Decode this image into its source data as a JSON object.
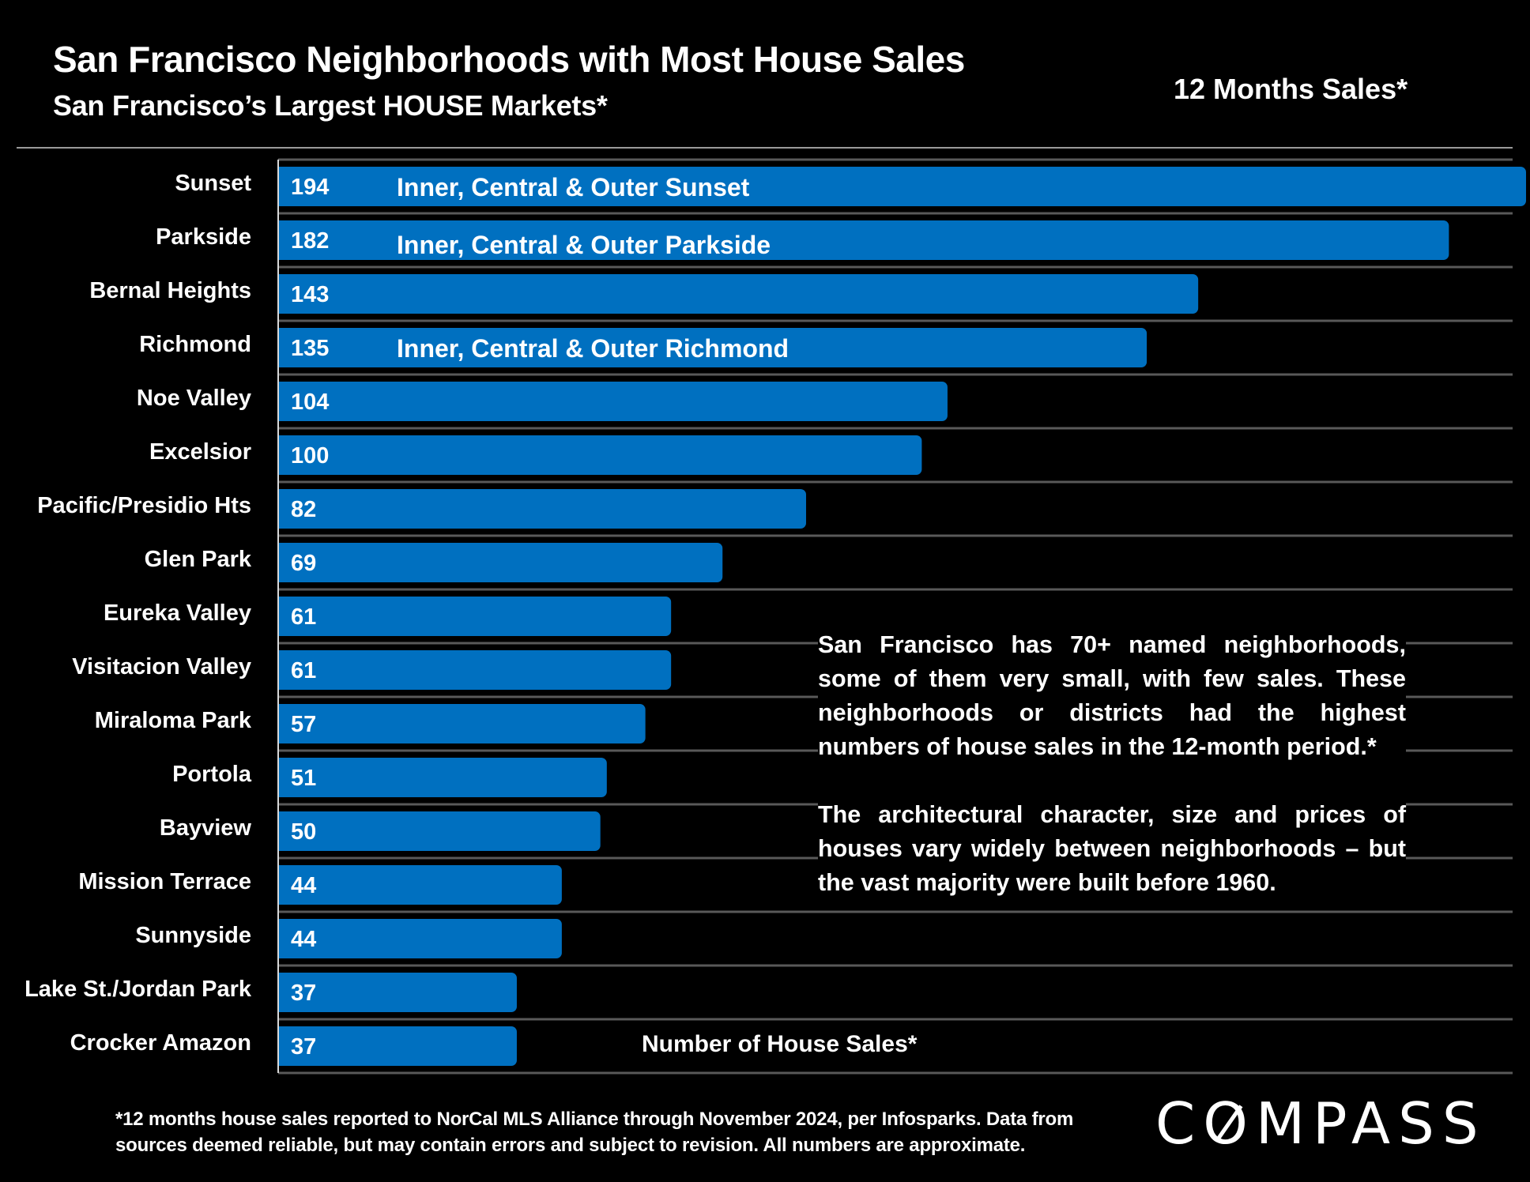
{
  "header": {
    "title": "San Francisco Neighborhoods with Most House Sales",
    "subtitle": "San Francisco’s Largest HOUSE Markets*",
    "period_label": "12 Months Sales*"
  },
  "chart_data": {
    "type": "bar",
    "orientation": "horizontal",
    "title": "San Francisco Neighborhoods with Most House Sales",
    "subtitle": "San Francisco’s Largest HOUSE Markets*",
    "xlabel": "Number of House Sales*",
    "ylabel": "",
    "xlim": [
      0,
      194
    ],
    "grid": true,
    "legend": "none",
    "bar_color": "#0070C0",
    "categories": [
      "Sunset",
      "Parkside",
      "Bernal Heights",
      "Richmond",
      "Noe Valley",
      "Excelsior",
      "Pacific/Presidio Hts",
      "Glen Park",
      "Eureka Valley",
      "Visitacion Valley",
      "Miraloma Park",
      "Portola",
      "Bayview",
      "Mission Terrace",
      "Sunnyside",
      "Lake St./Jordan Park",
      "Crocker Amazon"
    ],
    "values": [
      194,
      182,
      143,
      135,
      104,
      100,
      82,
      69,
      61,
      61,
      57,
      51,
      50,
      44,
      44,
      37,
      37
    ],
    "annotations": [
      {
        "category": "Sunset",
        "text": "Inner, Central & Outer Sunset"
      },
      {
        "category": "Parkside",
        "text": "Inner, Central & Outer Parkside"
      },
      {
        "category": "Richmond",
        "text": "Inner, Central & Outer Richmond"
      }
    ]
  },
  "note": {
    "paragraphs": [
      "San Francisco has 70+ named neighborhoods, some of them very small, with few sales. These neighborhoods or districts had the highest numbers of house sales in the 12-month period.*",
      "The architectural character, size and prices of houses vary widely between neighborhoods – but the vast majority were built before 1960."
    ]
  },
  "footnote": "*12 months house sales reported to NorCal MLS Alliance through November 2024, per Infosparks. Data from sources deemed reliable, but may contain errors and subject to revision. All numbers are approximate.",
  "logo": {
    "text_before": "C",
    "slashed_letter": "O",
    "text_after": "MPASS"
  }
}
